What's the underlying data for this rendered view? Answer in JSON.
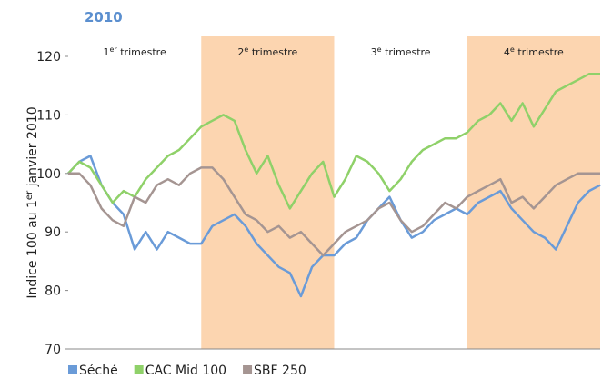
{
  "chart_data": {
    "type": "line",
    "title": "2010",
    "y_label": {
      "main": "Indice 100 au 1",
      "sup": "er",
      "rest": " janvier 2010"
    },
    "bands": [
      {
        "num": "1",
        "sup": "er",
        "text": " trimestre",
        "shaded": false
      },
      {
        "num": "2",
        "sup": "e",
        "text": " trimestre",
        "shaded": true
      },
      {
        "num": "3",
        "sup": "e",
        "text": " trimestre",
        "shaded": false
      },
      {
        "num": "4",
        "sup": "e",
        "text": " trimestre",
        "shaded": true
      }
    ],
    "band_color": "#fcd5b0",
    "ylim": [
      70,
      120
    ],
    "yticks": [
      70,
      80,
      90,
      100,
      110,
      120
    ],
    "series": [
      {
        "name": "Séché",
        "color": "#6a9bd8",
        "values": [
          100,
          102,
          103,
          98,
          95,
          93,
          87,
          90,
          87,
          90,
          89,
          88,
          88,
          91,
          92,
          93,
          91,
          88,
          86,
          84,
          83,
          79,
          84,
          86,
          86,
          88,
          89,
          92,
          94,
          96,
          92,
          89,
          90,
          92,
          93,
          94,
          93,
          95,
          96,
          97,
          94,
          92,
          90,
          89,
          87,
          91,
          95,
          97,
          98
        ]
      },
      {
        "name": "CAC Mid 100",
        "color": "#8fd169",
        "values": [
          100,
          102,
          101,
          98,
          95,
          97,
          96,
          99,
          101,
          103,
          104,
          106,
          108,
          109,
          110,
          109,
          104,
          100,
          103,
          98,
          94,
          97,
          100,
          102,
          96,
          99,
          103,
          102,
          100,
          97,
          99,
          102,
          104,
          105,
          106,
          106,
          107,
          109,
          110,
          112,
          109,
          112,
          108,
          111,
          114,
          115,
          116,
          117,
          117
        ]
      },
      {
        "name": "SBF 250",
        "color": "#a59592",
        "values": [
          100,
          100,
          98,
          94,
          92,
          91,
          96,
          95,
          98,
          99,
          98,
          100,
          101,
          101,
          99,
          96,
          93,
          92,
          90,
          91,
          89,
          90,
          88,
          86,
          88,
          90,
          91,
          92,
          94,
          95,
          92,
          90,
          91,
          93,
          95,
          94,
          96,
          97,
          98,
          99,
          95,
          96,
          94,
          96,
          98,
          99,
          100,
          100,
          100
        ]
      }
    ]
  }
}
